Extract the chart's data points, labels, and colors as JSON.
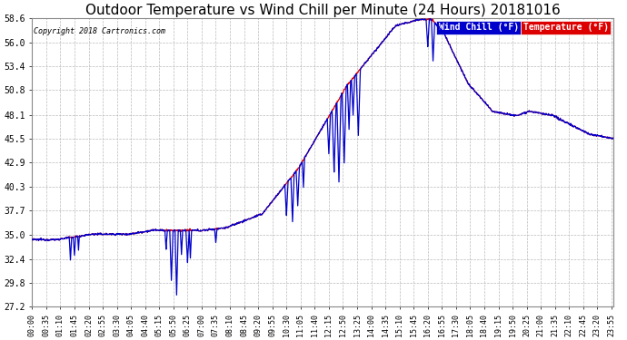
{
  "title": "Outdoor Temperature vs Wind Chill per Minute (24 Hours) 20181016",
  "copyright": "Copyright 2018 Cartronics.com",
  "title_fontsize": 11,
  "bg_color": "#ffffff",
  "grid_color": "#bbbbbb",
  "temp_color": "#dd0000",
  "wind_color": "#0000cc",
  "ylim_min": 27.2,
  "ylim_max": 58.6,
  "ytick_labels": [
    "27.2",
    "29.8",
    "32.4",
    "35.0",
    "37.7",
    "40.3",
    "42.9",
    "45.5",
    "48.1",
    "50.8",
    "53.4",
    "56.0",
    "58.6"
  ],
  "ytick_values": [
    27.2,
    29.8,
    32.4,
    35.0,
    37.7,
    40.3,
    42.9,
    45.5,
    48.1,
    50.8,
    53.4,
    56.0,
    58.6
  ],
  "xtick_labels": [
    "00:00",
    "00:35",
    "01:10",
    "01:45",
    "02:20",
    "02:55",
    "03:30",
    "04:05",
    "04:40",
    "05:15",
    "05:50",
    "06:25",
    "07:00",
    "07:35",
    "08:10",
    "08:45",
    "09:20",
    "09:55",
    "10:30",
    "11:05",
    "11:40",
    "12:15",
    "12:50",
    "13:25",
    "14:00",
    "14:35",
    "15:10",
    "15:45",
    "16:20",
    "16:55",
    "17:30",
    "18:05",
    "18:40",
    "19:15",
    "19:50",
    "20:25",
    "21:00",
    "21:35",
    "22:10",
    "22:45",
    "23:20",
    "23:55"
  ],
  "legend_wind_label": "Wind Chill (°F)",
  "legend_temp_label": "Temperature (°F)",
  "legend_wind_bg": "#0000cc",
  "legend_temp_bg": "#dd0000",
  "legend_text_color": "#ffffff"
}
